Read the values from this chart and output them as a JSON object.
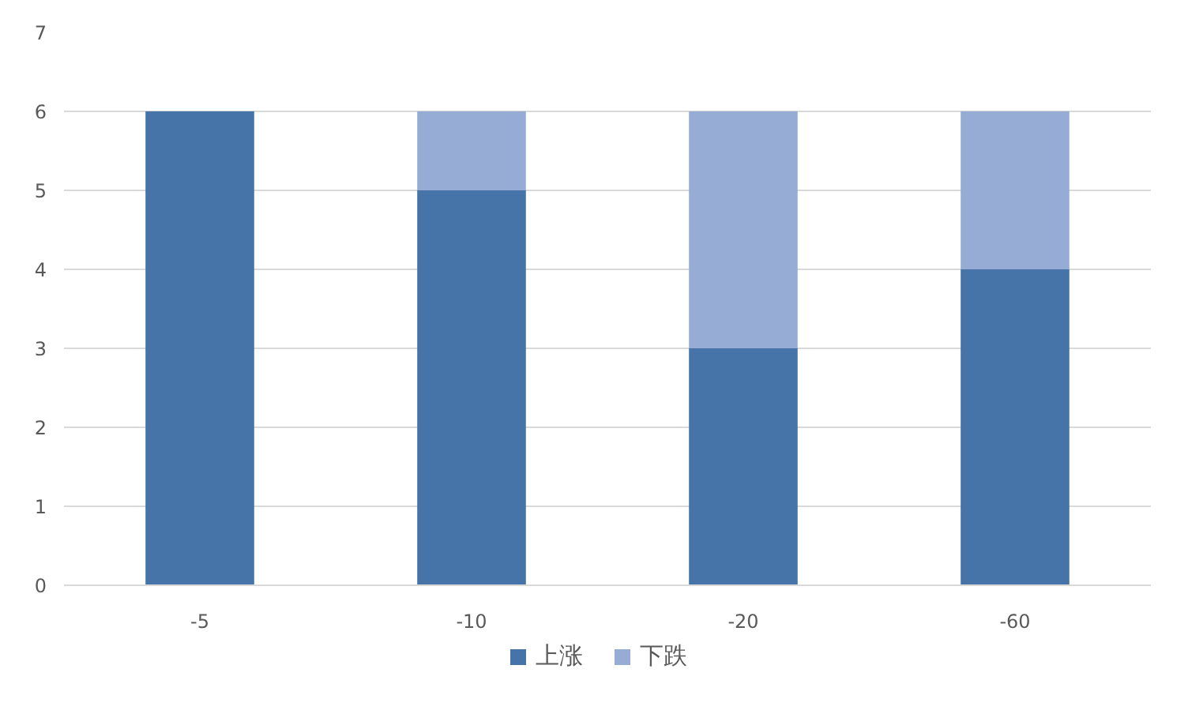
{
  "chart_data": {
    "type": "bar",
    "stacked": true,
    "categories": [
      "-5",
      "-10",
      "-20",
      "-60"
    ],
    "series": [
      {
        "name": "上涨",
        "color": "#4674a9",
        "values": [
          6,
          5,
          3,
          4
        ]
      },
      {
        "name": "下跌",
        "color": "#97acd4",
        "values": [
          0,
          1,
          3,
          2
        ]
      }
    ],
    "ylim": [
      0,
      7
    ],
    "yticks": [
      0,
      1,
      2,
      3,
      4,
      5,
      6,
      7
    ],
    "grid": "y",
    "legend": "bottom"
  }
}
